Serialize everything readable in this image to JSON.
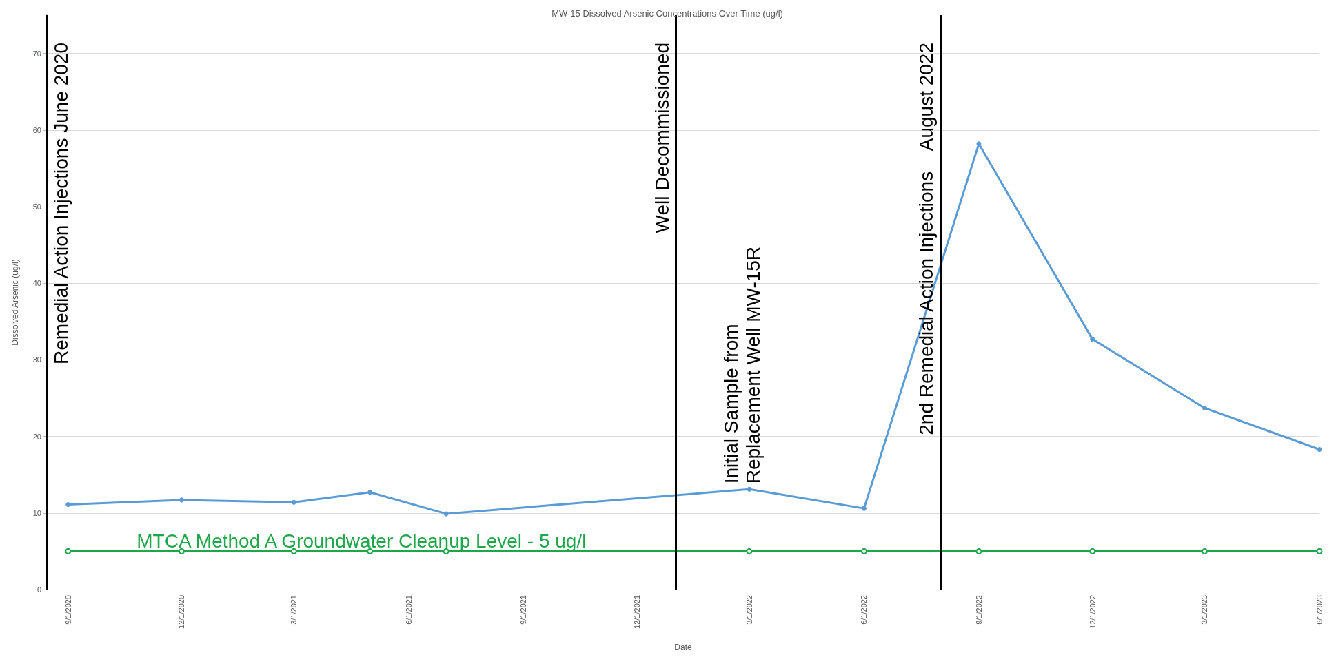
{
  "chart_data": {
    "type": "line",
    "title": "MW-15 Dissolved Arsenic Concentrations Over Time (ug/l)",
    "xlabel": "Date",
    "ylabel": "Dissolved Arsenic (ug/l)",
    "x": [
      "2020-09-01",
      "2020-12-01",
      "2021-03-01",
      "2021-05-01",
      "2021-07-01",
      "2022-03-01",
      "2022-06-01",
      "2022-09-01",
      "2022-12-01",
      "2023-03-01",
      "2023-06-01"
    ],
    "series": [
      {
        "color": "#5b9bd5",
        "marker": "circle",
        "values": [
          11.1,
          11.7,
          11.4,
          12.7,
          9.9,
          13.1,
          10.6,
          58.2,
          32.7,
          23.7,
          18.3
        ]
      },
      {
        "name": "MTCA Method A Groundwater Cleanup Level - 5 ug/l",
        "color": "#1fa64a",
        "marker": "emptyCircle",
        "values": [
          5,
          5,
          5,
          5,
          5,
          5,
          5,
          5,
          5,
          5,
          5
        ]
      }
    ],
    "xlim": [
      "2020-08-15",
      "2023-06-01"
    ],
    "xticks": [
      {
        "value": "2020-09-01",
        "label": "9/1/2020"
      },
      {
        "value": "2020-12-01",
        "label": "12/1/2020"
      },
      {
        "value": "2021-03-01",
        "label": "3/1/2021"
      },
      {
        "value": "2021-06-01",
        "label": "6/1/2021"
      },
      {
        "value": "2021-09-01",
        "label": "9/1/2021"
      },
      {
        "value": "2021-12-01",
        "label": "12/1/2021"
      },
      {
        "value": "2022-03-01",
        "label": "3/1/2022"
      },
      {
        "value": "2022-06-01",
        "label": "6/1/2022"
      },
      {
        "value": "2022-09-01",
        "label": "9/1/2022"
      },
      {
        "value": "2022-12-01",
        "label": "12/1/2022"
      },
      {
        "value": "2023-03-01",
        "label": "3/1/2023"
      },
      {
        "value": "2023-06-01",
        "label": "6/1/2023"
      }
    ],
    "ylim": [
      0,
      75
    ],
    "yticks": [
      0,
      10,
      20,
      30,
      40,
      50,
      60,
      70
    ],
    "grid": "y",
    "ref_lines": [
      {
        "axis": "x",
        "value": "2020-08-15",
        "label": "Remedial Action Injections June 2020",
        "color": "#000000"
      },
      {
        "axis": "x",
        "value": "2022-01-01",
        "label": "Well Decommissioned",
        "color": "#000000"
      },
      {
        "axis": "x",
        "value": "2022-08-01",
        "label": "2nd Remedial Action Injections    August 2022",
        "color": "#000000"
      }
    ],
    "annotations": [
      {
        "text": "Initial Sample from\nReplacement Well MW-15R",
        "x": "2022-03-01",
        "y": 13.1
      }
    ]
  }
}
